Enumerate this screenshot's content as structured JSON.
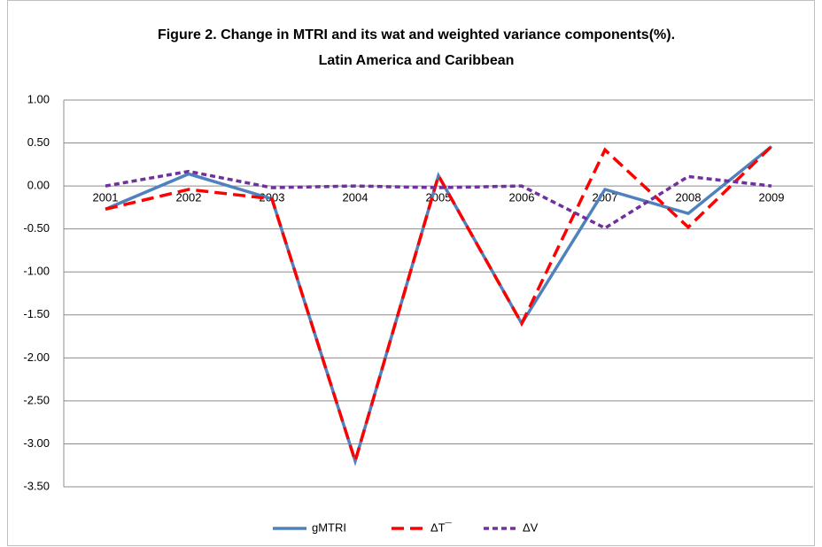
{
  "chart_data": {
    "type": "line",
    "title": [
      "Figure 2. Change in MTRI and its  wat and weighted variance components(%).",
      "Latin America and Caribbean"
    ],
    "categories": [
      "2001",
      "2002",
      "2003",
      "2004",
      "2005",
      "2006",
      "2007",
      "2008",
      "2009"
    ],
    "series": [
      {
        "name": "gMTRI",
        "color": "#4f81bd",
        "dash": "solid",
        "values": [
          -0.27,
          0.14,
          -0.15,
          -3.2,
          0.12,
          -1.6,
          -0.04,
          -0.32,
          0.46
        ]
      },
      {
        "name": "ΔT¯",
        "color": "#ff0000",
        "dash": "long",
        "values": [
          -0.27,
          -0.04,
          -0.15,
          -3.2,
          0.12,
          -1.6,
          0.42,
          -0.48,
          0.46
        ]
      },
      {
        "name": "ΔV",
        "color": "#7030a0",
        "dash": "short",
        "values": [
          0,
          0.17,
          -0.02,
          0,
          -0.02,
          0,
          -0.49,
          0.11,
          0
        ]
      }
    ],
    "ylim": [
      -3.5,
      1
    ],
    "yticks": [
      {
        "value": 1,
        "label": "1.00"
      },
      {
        "value": 0.5,
        "label": "0.50"
      },
      {
        "value": 0,
        "label": "0.00"
      },
      {
        "value": -0.5,
        "label": "-0.50"
      },
      {
        "value": -1,
        "label": "-1.00"
      },
      {
        "value": -1.5,
        "label": "-1.50"
      },
      {
        "value": -2,
        "label": "-2.00"
      },
      {
        "value": -2.5,
        "label": "-2.50"
      },
      {
        "value": -3,
        "label": "-3.00"
      },
      {
        "value": -3.5,
        "label": "-3.50"
      }
    ],
    "grid": true,
    "legend": "bottom"
  }
}
